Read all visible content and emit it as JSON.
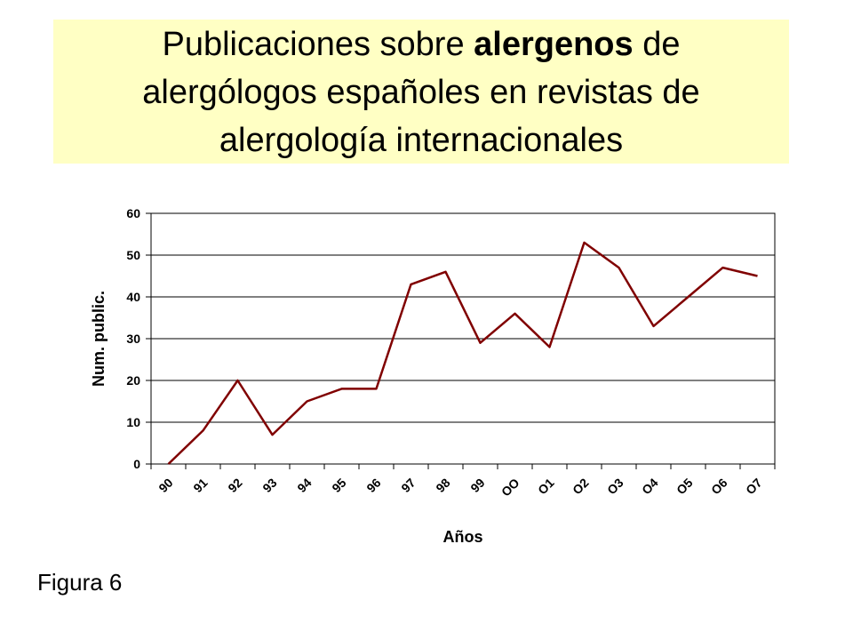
{
  "chart_data": {
    "type": "line",
    "title_parts": [
      "Publicaciones sobre",
      "alergenos",
      "de",
      "alergólogos españoles en revistas de",
      "alergología internacionales"
    ],
    "x_label": "Años",
    "y_label": "Num. public.",
    "categories": [
      "90",
      "91",
      "92",
      "93",
      "94",
      "95",
      "96",
      "97",
      "98",
      "99",
      "OO",
      "O1",
      "O2",
      "O3",
      "O4",
      "O5",
      "O6",
      "O7"
    ],
    "values": [
      0,
      8,
      20,
      7,
      15,
      18,
      18,
      43,
      46,
      29,
      36,
      28,
      53,
      47,
      33,
      40,
      47,
      45
    ],
    "color": "#800000",
    "ylim": [
      0,
      60
    ],
    "yticks": [
      0,
      10,
      20,
      30,
      40,
      50,
      60
    ],
    "grid": true
  },
  "caption": "Figura 6"
}
